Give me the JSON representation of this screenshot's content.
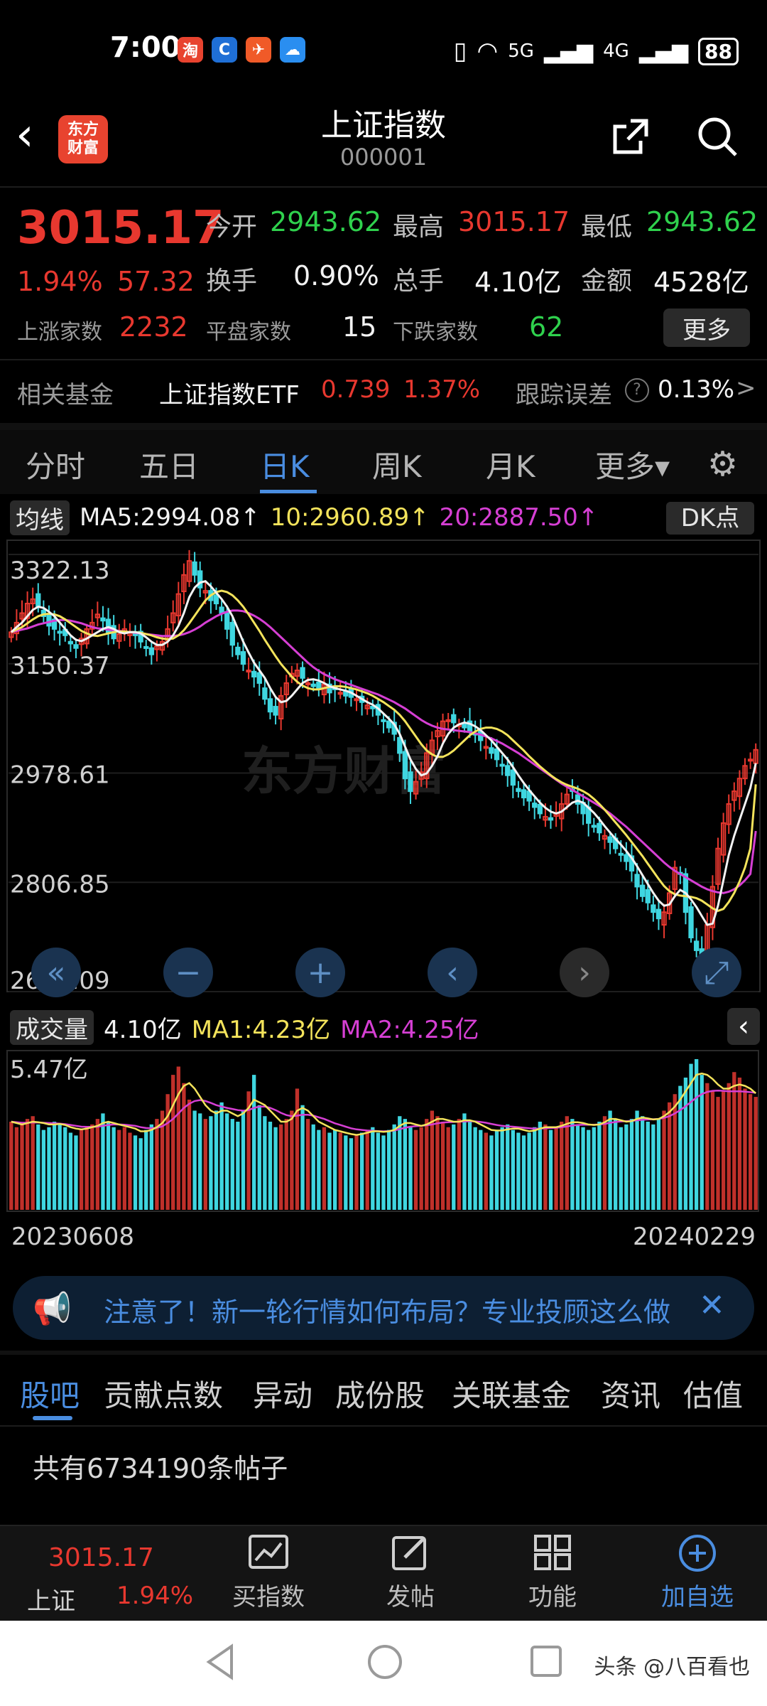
{
  "status_bar": {
    "time": "7:00",
    "apps": [
      {
        "icon": "taobao-icon",
        "glyph": "淘",
        "color": "#e8432f"
      },
      {
        "icon": "browser-icon",
        "glyph": "C",
        "color": "#1f6fd6"
      },
      {
        "icon": "paper-plane-icon",
        "glyph": "✈",
        "color": "#f05a28"
      },
      {
        "icon": "cloud-icon",
        "glyph": "☁",
        "color": "#2a8ef0"
      }
    ],
    "network": "5G",
    "network2": "4G",
    "battery": "88"
  },
  "header": {
    "logo_line1": "东方",
    "logo_line2": "财富",
    "title": "上证指数",
    "code": "000001"
  },
  "quote": {
    "price": "3015.17",
    "change_pct": "1.94%",
    "change": "57.32",
    "open_label": "今开",
    "open": "2943.62",
    "high_label": "最高",
    "high": "3015.17",
    "low_label": "最低",
    "low": "2943.62",
    "turnover_label": "换手",
    "turnover": "0.90%",
    "volume_label": "总手",
    "volume": "4.10亿",
    "amount_label": "金额",
    "amount": "4528亿",
    "up_label": "上涨家数",
    "up": "2232",
    "flat_label": "平盘家数",
    "flat": "15",
    "down_label": "下跌家数",
    "down": "62",
    "more_label": "更多"
  },
  "fund": {
    "label": "相关基金",
    "name": "上证指数ETF",
    "price": "0.739",
    "pct": "1.37%",
    "err_label": "跟踪误差",
    "err_value": "0.13%",
    "arrow": ">"
  },
  "period_tabs": [
    {
      "label": "分时",
      "active": false
    },
    {
      "label": "五日",
      "active": false
    },
    {
      "label": "日K",
      "active": true
    },
    {
      "label": "周K",
      "active": false
    },
    {
      "label": "月K",
      "active": false
    },
    {
      "label": "更多▾",
      "active": false
    }
  ],
  "ma_bar": {
    "selector": "均线",
    "ma5": "MA5:2994.08↑",
    "ma10": "10:2960.89↑",
    "ma20": "20:2887.50↑",
    "dk": "DK点"
  },
  "watermark": "东方财富",
  "vol_bar": {
    "selector": "成交量",
    "vol": "4.10亿",
    "ma1": "MA1:4.23亿",
    "ma2": "MA2:4.25亿",
    "max_label": "5.47亿"
  },
  "chart_data": {
    "type": "candlestick",
    "y_ticks": [
      "3322.13",
      "3150.37",
      "2978.61",
      "2806.85",
      "2635.09"
    ],
    "ylim": [
      2635.09,
      3322.13
    ],
    "x_start": "20230608",
    "x_end": "20240229",
    "closes": [
      3200,
      3215,
      3230,
      3245,
      3252,
      3240,
      3225,
      3210,
      3205,
      3200,
      3195,
      3182,
      3175,
      3190,
      3205,
      3215,
      3228,
      3218,
      3200,
      3190,
      3197,
      3205,
      3200,
      3195,
      3185,
      3175,
      3165,
      3178,
      3185,
      3205,
      3230,
      3260,
      3290,
      3312,
      3290,
      3270,
      3265,
      3250,
      3245,
      3230,
      3205,
      3180,
      3165,
      3150,
      3140,
      3130,
      3120,
      3095,
      3075,
      3070,
      3100,
      3120,
      3135,
      3140,
      3128,
      3120,
      3115,
      3110,
      3118,
      3105,
      3110,
      3105,
      3100,
      3098,
      3095,
      3090,
      3085,
      3080,
      3070,
      3060,
      3050,
      3040,
      3010,
      2970,
      2950,
      2965,
      2980,
      3010,
      3030,
      3045,
      3060,
      3062,
      3058,
      3055,
      3050,
      3045,
      3040,
      3030,
      3020,
      3010,
      3000,
      2990,
      2975,
      2960,
      2950,
      2940,
      2935,
      2925,
      2915,
      2910,
      2905,
      2915,
      2930,
      2945,
      2950,
      2930,
      2915,
      2900,
      2895,
      2885,
      2880,
      2870,
      2860,
      2850,
      2840,
      2825,
      2800,
      2785,
      2775,
      2760,
      2750,
      2760,
      2790,
      2830,
      2820,
      2760,
      2720,
      2700,
      2690,
      2740,
      2800,
      2860,
      2900,
      2930,
      2950,
      2970,
      2990,
      3000,
      3015.17
    ],
    "ma5": [
      3200,
      3208,
      3215,
      3225,
      3235,
      3240,
      3238,
      3232,
      3225,
      3215,
      3205,
      3195,
      3188,
      3186,
      3190,
      3195,
      3200,
      3205,
      3208,
      3205,
      3200,
      3198,
      3200,
      3200,
      3198,
      3192,
      3185,
      3180,
      3180,
      3185,
      3195,
      3210,
      3230,
      3255,
      3270,
      3278,
      3280,
      3272,
      3262,
      3252,
      3240,
      3225,
      3205,
      3185,
      3168,
      3152,
      3140,
      3128,
      3112,
      3098,
      3090,
      3092,
      3100,
      3110,
      3120,
      3125,
      3126,
      3124,
      3120,
      3115,
      3112,
      3110,
      3108,
      3105,
      3100,
      3095,
      3090,
      3086,
      3080,
      3072,
      3064,
      3055,
      3040,
      3020,
      3000,
      2985,
      2975,
      2978,
      2990,
      3005,
      3025,
      3040,
      3050,
      3055,
      3058,
      3056,
      3052,
      3046,
      3038,
      3030,
      3020,
      3010,
      3000,
      2988,
      2975,
      2963,
      2952,
      2942,
      2932,
      2924,
      2918,
      2915,
      2918,
      2925,
      2932,
      2935,
      2932,
      2924,
      2916,
      2906,
      2895,
      2885,
      2875,
      2866,
      2856,
      2845,
      2832,
      2818,
      2804,
      2790,
      2778,
      2770,
      2772,
      2785,
      2795,
      2790,
      2780,
      2768,
      2754,
      2740,
      2742,
      2770,
      2810,
      2850,
      2880,
      2905,
      2930,
      2955,
      2994.08
    ],
    "ma10": [
      3200,
      3204,
      3208,
      3214,
      3220,
      3225,
      3228,
      3229,
      3228,
      3225,
      3220,
      3214,
      3208,
      3202,
      3198,
      3195,
      3194,
      3196,
      3198,
      3200,
      3201,
      3201,
      3200,
      3200,
      3199,
      3197,
      3195,
      3192,
      3190,
      3189,
      3190,
      3195,
      3203,
      3214,
      3226,
      3238,
      3250,
      3258,
      3263,
      3265,
      3263,
      3258,
      3250,
      3240,
      3228,
      3215,
      3202,
      3188,
      3175,
      3162,
      3150,
      3140,
      3130,
      3122,
      3116,
      3112,
      3110,
      3110,
      3112,
      3114,
      3115,
      3115,
      3114,
      3112,
      3110,
      3107,
      3104,
      3100,
      3095,
      3090,
      3084,
      3078,
      3070,
      3060,
      3048,
      3036,
      3024,
      3014,
      3008,
      3004,
      3004,
      3008,
      3014,
      3022,
      3030,
      3038,
      3044,
      3048,
      3050,
      3050,
      3048,
      3044,
      3038,
      3030,
      3022,
      3014,
      3005,
      2997,
      2989,
      2982,
      2975,
      2969,
      2964,
      2960,
      2957,
      2954,
      2950,
      2945,
      2938,
      2930,
      2921,
      2911,
      2901,
      2891,
      2881,
      2870,
      2859,
      2848,
      2836,
      2824,
      2812,
      2801,
      2793,
      2788,
      2786,
      2785,
      2784,
      2782,
      2778,
      2772,
      2766,
      2762,
      2765,
      2776,
      2790,
      2808,
      2830,
      2860,
      2960.89
    ],
    "ma20": [
      3200,
      3202,
      3204,
      3206,
      3209,
      3212,
      3214,
      3216,
      3218,
      3219,
      3219,
      3218,
      3216,
      3214,
      3211,
      3208,
      3206,
      3205,
      3204,
      3203,
      3202,
      3201,
      3200,
      3199,
      3198,
      3197,
      3196,
      3195,
      3194,
      3194,
      3194,
      3195,
      3197,
      3200,
      3204,
      3209,
      3215,
      3220,
      3225,
      3229,
      3232,
      3234,
      3234,
      3233,
      3230,
      3226,
      3221,
      3215,
      3208,
      3200,
      3192,
      3184,
      3176,
      3168,
      3160,
      3152,
      3145,
      3139,
      3134,
      3130,
      3126,
      3123,
      3120,
      3117,
      3114,
      3111,
      3108,
      3105,
      3102,
      3098,
      3094,
      3090,
      3085,
      3080,
      3074,
      3068,
      3062,
      3057,
      3053,
      3050,
      3048,
      3047,
      3046,
      3045,
      3044,
      3043,
      3041,
      3039,
      3036,
      3033,
      3029,
      3025,
      3020,
      3015,
      3010,
      3004,
      2998,
      2992,
      2986,
      2980,
      2974,
      2968,
      2962,
      2957,
      2952,
      2947,
      2942,
      2937,
      2932,
      2927,
      2921,
      2915,
      2908,
      2901,
      2894,
      2886,
      2878,
      2870,
      2862,
      2854,
      2846,
      2838,
      2831,
      2825,
      2820,
      2815,
      2810,
      2805,
      2800,
      2796,
      2793,
      2791,
      2790,
      2792,
      2796,
      2802,
      2810,
      2820,
      2887.5
    ],
    "volume_max": 5.47,
    "volumes": [
      3.2,
      3.0,
      3.1,
      3.3,
      3.4,
      3.1,
      2.9,
      3.0,
      3.2,
      3.1,
      3.0,
      2.8,
      2.7,
      2.9,
      3.0,
      3.1,
      3.3,
      3.5,
      3.2,
      3.0,
      2.9,
      3.0,
      2.8,
      2.7,
      2.6,
      2.9,
      3.1,
      3.3,
      3.6,
      4.2,
      4.9,
      5.2,
      4.6,
      4.0,
      3.6,
      3.5,
      3.3,
      3.4,
      3.6,
      3.9,
      3.5,
      3.3,
      3.2,
      3.6,
      4.3,
      4.9,
      3.8,
      3.4,
      3.2,
      3.0,
      3.1,
      3.3,
      3.6,
      4.4,
      3.8,
      3.3,
      3.1,
      2.9,
      3.0,
      2.8,
      2.9,
      2.8,
      2.7,
      2.6,
      2.7,
      2.8,
      2.9,
      3.0,
      2.8,
      2.7,
      2.9,
      3.1,
      3.4,
      3.3,
      3.0,
      2.9,
      3.0,
      3.3,
      3.6,
      3.4,
      3.2,
      3.0,
      3.1,
      3.3,
      3.5,
      3.2,
      3.0,
      2.9,
      2.8,
      2.7,
      2.9,
      3.0,
      3.1,
      2.9,
      2.8,
      2.7,
      2.8,
      3.0,
      3.2,
      3.1,
      2.9,
      3.0,
      3.2,
      3.4,
      3.3,
      3.1,
      3.0,
      2.9,
      3.0,
      3.2,
      3.4,
      3.6,
      3.3,
      3.0,
      3.1,
      3.3,
      3.6,
      3.4,
      3.2,
      3.1,
      3.3,
      3.6,
      3.9,
      4.2,
      4.5,
      4.8,
      5.3,
      5.47,
      4.9,
      4.6,
      4.3,
      4.1,
      4.3,
      4.6,
      5.0,
      4.8,
      4.4,
      4.2,
      4.1
    ],
    "vol_ma1": [
      3.2,
      3.15,
      3.1,
      3.15,
      3.2,
      3.18,
      3.15,
      3.1,
      3.1,
      3.12,
      3.08,
      3.0,
      2.95,
      2.92,
      2.95,
      3.0,
      3.05,
      3.15,
      3.2,
      3.15,
      3.1,
      3.05,
      3.0,
      2.95,
      2.85,
      2.85,
      2.9,
      3.0,
      3.15,
      3.4,
      3.8,
      4.2,
      4.5,
      4.6,
      4.4,
      4.1,
      3.8,
      3.6,
      3.5,
      3.6,
      3.6,
      3.5,
      3.4,
      3.5,
      3.7,
      4.0,
      3.9,
      3.8,
      3.6,
      3.4,
      3.2,
      3.2,
      3.3,
      3.6,
      3.7,
      3.6,
      3.4,
      3.2,
      3.1,
      3.0,
      2.9,
      2.85,
      2.8,
      2.75,
      2.72,
      2.75,
      2.8,
      2.85,
      2.85,
      2.83,
      2.85,
      2.9,
      3.05,
      3.15,
      3.15,
      3.1,
      3.05,
      3.1,
      3.2,
      3.3,
      3.3,
      3.25,
      3.2,
      3.2,
      3.25,
      3.25,
      3.2,
      3.1,
      3.0,
      2.9,
      2.88,
      2.88,
      2.92,
      2.95,
      2.95,
      2.9,
      2.85,
      2.88,
      2.95,
      3.0,
      3.0,
      3.0,
      3.05,
      3.12,
      3.18,
      3.18,
      3.15,
      3.1,
      3.08,
      3.1,
      3.18,
      3.3,
      3.3,
      3.25,
      3.2,
      3.22,
      3.3,
      3.35,
      3.32,
      3.28,
      3.3,
      3.4,
      3.55,
      3.75,
      4.0,
      4.3,
      4.6,
      4.9,
      4.95,
      4.9,
      4.75,
      4.55,
      4.4,
      4.4,
      4.5,
      4.55,
      4.5,
      4.4,
      4.23
    ],
    "vol_ma2": [
      3.2,
      3.18,
      3.16,
      3.16,
      3.17,
      3.17,
      3.16,
      3.15,
      3.14,
      3.13,
      3.11,
      3.08,
      3.05,
      3.02,
      3.01,
      3.01,
      3.02,
      3.05,
      3.08,
      3.1,
      3.1,
      3.09,
      3.07,
      3.05,
      3.0,
      2.97,
      2.96,
      2.98,
      3.03,
      3.15,
      3.3,
      3.5,
      3.7,
      3.85,
      3.95,
      3.98,
      3.95,
      3.88,
      3.8,
      3.75,
      3.7,
      3.66,
      3.62,
      3.6,
      3.62,
      3.7,
      3.75,
      3.75,
      3.7,
      3.62,
      3.52,
      3.44,
      3.4,
      3.42,
      3.45,
      3.45,
      3.42,
      3.36,
      3.3,
      3.22,
      3.14,
      3.08,
      3.02,
      2.96,
      2.92,
      2.9,
      2.88,
      2.87,
      2.86,
      2.85,
      2.86,
      2.88,
      2.93,
      2.98,
      3.02,
      3.04,
      3.05,
      3.07,
      3.1,
      3.14,
      3.17,
      3.18,
      3.19,
      3.2,
      3.21,
      3.22,
      3.21,
      3.19,
      3.16,
      3.12,
      3.08,
      3.05,
      3.03,
      3.02,
      3.0,
      2.98,
      2.96,
      2.95,
      2.95,
      2.96,
      2.97,
      2.98,
      3.0,
      3.03,
      3.06,
      3.08,
      3.09,
      3.09,
      3.09,
      3.1,
      3.12,
      3.16,
      3.19,
      3.21,
      3.22,
      3.23,
      3.25,
      3.27,
      3.28,
      3.29,
      3.3,
      3.34,
      3.4,
      3.5,
      3.62,
      3.76,
      3.92,
      4.08,
      4.2,
      4.28,
      4.32,
      4.33,
      4.32,
      4.3,
      4.3,
      4.3,
      4.29,
      4.27,
      4.25
    ]
  },
  "notice": {
    "text": "注意了！新一轮行情如何布局？专业投顾这么做",
    "close": "✕"
  },
  "bottom_tabs": [
    {
      "label": "股吧",
      "active": true
    },
    {
      "label": "贡献点数",
      "active": false
    },
    {
      "label": "异动",
      "active": false
    },
    {
      "label": "成份股",
      "active": false
    },
    {
      "label": "关联基金",
      "active": false
    },
    {
      "label": "资讯",
      "active": false
    },
    {
      "label": "估值",
      "active": false
    }
  ],
  "posts_count": "共有6734190条帖子",
  "bottom_nav": {
    "index_price": "3015.17",
    "index_name": "上证",
    "index_pct": "1.94%",
    "items": [
      {
        "label": "买指数",
        "icon": "chart-icon",
        "glyph": "📈"
      },
      {
        "label": "发帖",
        "icon": "edit-icon",
        "glyph": "✎"
      },
      {
        "label": "功能",
        "icon": "grid-icon",
        "glyph": "◫"
      },
      {
        "label": "加自选",
        "icon": "plus-circle-icon",
        "glyph": "+"
      }
    ]
  },
  "watermark_corner": "头条 @八百看也"
}
